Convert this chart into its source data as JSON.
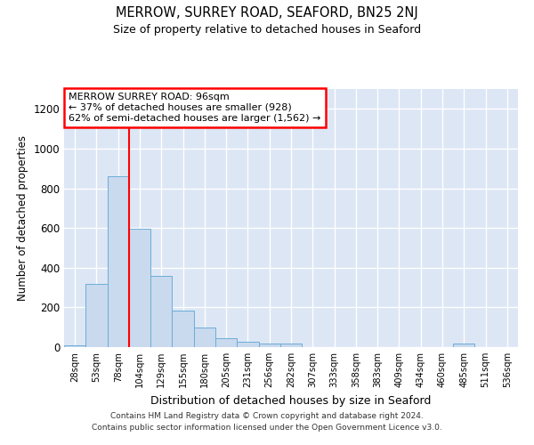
{
  "title": "MERROW, SURREY ROAD, SEAFORD, BN25 2NJ",
  "subtitle": "Size of property relative to detached houses in Seaford",
  "xlabel": "Distribution of detached houses by size in Seaford",
  "ylabel": "Number of detached properties",
  "bar_color": "#c9d9ee",
  "bar_edge_color": "#6baed6",
  "background_color": "#dce6f5",
  "bins": [
    "28sqm",
    "53sqm",
    "78sqm",
    "104sqm",
    "129sqm",
    "155sqm",
    "180sqm",
    "205sqm",
    "231sqm",
    "256sqm",
    "282sqm",
    "307sqm",
    "333sqm",
    "358sqm",
    "383sqm",
    "409sqm",
    "434sqm",
    "460sqm",
    "485sqm",
    "511sqm",
    "536sqm"
  ],
  "values": [
    10,
    320,
    860,
    595,
    360,
    185,
    100,
    45,
    25,
    20,
    20,
    0,
    0,
    0,
    0,
    0,
    0,
    0,
    20,
    0,
    0
  ],
  "ylim": [
    0,
    1300
  ],
  "yticks": [
    0,
    200,
    400,
    600,
    800,
    1000,
    1200
  ],
  "vline_x": 2.5,
  "annotation_text": "MERROW SURREY ROAD: 96sqm\n← 37% of detached houses are smaller (928)\n62% of semi-detached houses are larger (1,562) →",
  "annotation_box_color": "white",
  "annotation_box_edge_color": "red",
  "vline_color": "red",
  "footer1": "Contains HM Land Registry data © Crown copyright and database right 2024.",
  "footer2": "Contains public sector information licensed under the Open Government Licence v3.0."
}
